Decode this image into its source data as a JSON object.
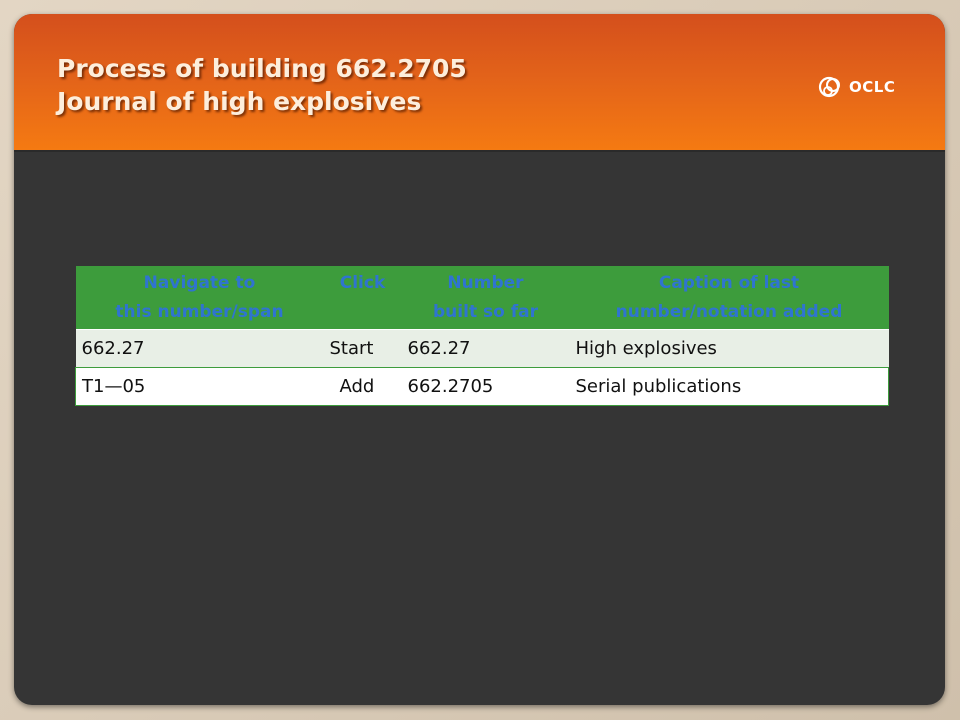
{
  "slide": {
    "title_line1": "Process of building 662.2705",
    "title_line2": "Journal of high explosives",
    "logo_text": "OCLC",
    "logo_icon": "oclc-logo-icon",
    "colors": {
      "header_top": "#d44f1c",
      "header_bottom": "#f57a12",
      "body_bg": "#353535",
      "table_header_bg": "#3d9c3c",
      "table_header_text": "#2f74d0"
    }
  },
  "table": {
    "headers": [
      {
        "line1": "Navigate to",
        "line2": "this number/span"
      },
      {
        "line1": "Click",
        "line2": ""
      },
      {
        "line1": "Number",
        "line2": "built so far"
      },
      {
        "line1": "Caption of last",
        "line2": "number/notation added"
      }
    ],
    "rows": [
      {
        "navigate": "662.27",
        "click": "Start",
        "number": "662.27",
        "caption": "High explosives"
      },
      {
        "navigate": "T1—05",
        "click": "Add",
        "number": "662.2705",
        "caption": "Serial publications"
      }
    ]
  }
}
